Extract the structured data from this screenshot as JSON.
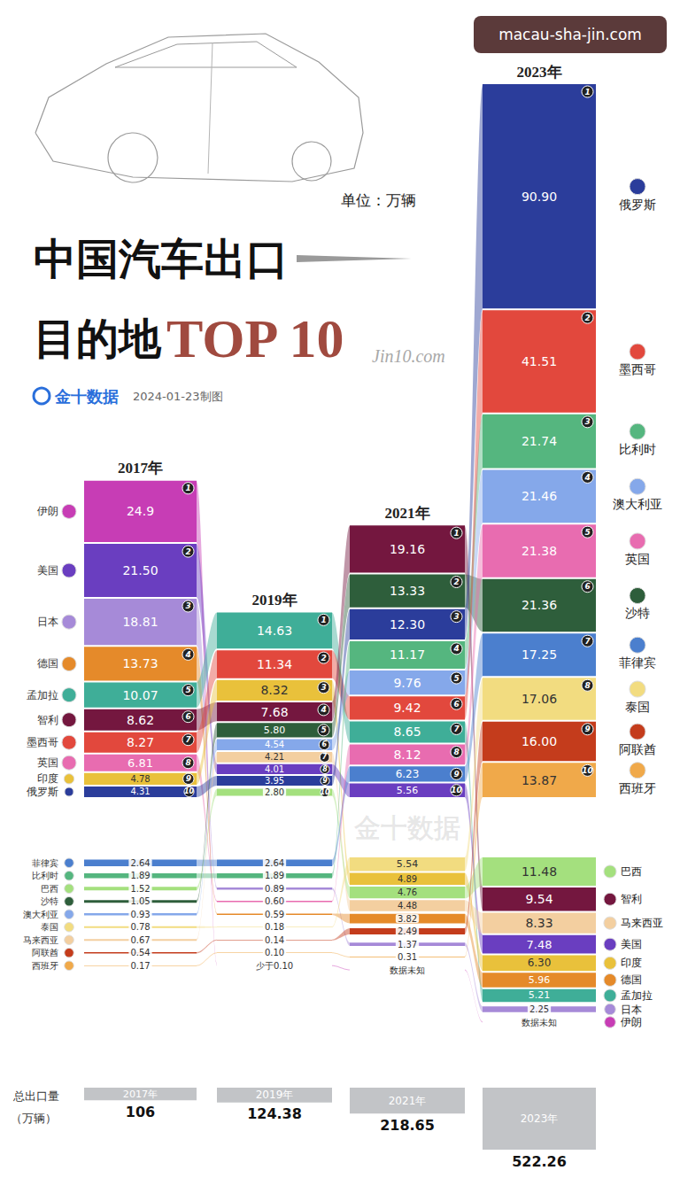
{
  "watermark_top": "macau-sha-jin.com",
  "header": {
    "title_line1": "中国汽车出口",
    "title_line2": "目的地",
    "title_highlight": "TOP 10",
    "unit": "单位：万辆",
    "source": "金十数据",
    "date": "2024-01-23制图",
    "signature": "Jin10.com"
  },
  "totals": {
    "label": "总出口量",
    "unit": "（万辆）"
  },
  "chart_data": {
    "type": "bar",
    "data_labels": true,
    "years": [
      {
        "label": "2017年",
        "total": 106,
        "ranks": [
          1,
          2,
          3,
          4,
          5,
          6,
          7,
          8,
          9,
          10
        ],
        "countries": [
          "伊朗",
          "美国",
          "日本",
          "德国",
          "孟加拉",
          "智利",
          "墨西哥",
          "英国",
          "印度",
          "俄罗斯",
          "菲律宾",
          "比利时",
          "巴西",
          "沙特",
          "澳大利亚",
          "泰国",
          "马来西亚",
          "阿联酋",
          "西班牙"
        ],
        "values": [
          24.9,
          21.5,
          18.81,
          13.73,
          10.07,
          8.62,
          8.27,
          6.81,
          4.78,
          4.31,
          2.64,
          1.89,
          1.52,
          1.05,
          0.93,
          0.78,
          0.67,
          0.54,
          0.17
        ],
        "value_labels": [
          "24.9",
          "21.50",
          "18.81",
          "13.73",
          "10.07",
          "8.62",
          "8.27",
          "6.81",
          "4.78",
          "4.31",
          "2.64",
          "1.89",
          "1.52",
          "1.05",
          "0.93",
          "0.78",
          "0.67",
          "0.54",
          "0.17"
        ],
        "colors": [
          "#c73db5",
          "#6a3ec0",
          "#a68ad8",
          "#e58a2a",
          "#3fae98",
          "#74173f",
          "#e2483d",
          "#e86cb0",
          "#e9c13b",
          "#2b3d9b",
          "#4b7fce",
          "#55b67f",
          "#a4e07e",
          "#2e5e3b",
          "#85a8ea",
          "#f2dc80",
          "#f3cfa0",
          "#c43c1c",
          "#f0a94a"
        ]
      },
      {
        "label": "2019年",
        "total": 124.38,
        "ranks": [
          1,
          2,
          3,
          4,
          5,
          6,
          7,
          8,
          9,
          10
        ],
        "values": [
          14.63,
          11.34,
          8.32,
          7.68,
          5.8,
          4.54,
          4.21,
          4.01,
          3.95,
          2.8,
          2.64,
          1.89,
          0.89,
          0.6,
          0.59,
          0.18,
          0.14,
          0.1,
          null
        ],
        "value_labels": [
          "14.63",
          "11.34",
          "8.32",
          "7.68",
          "5.80",
          "4.54",
          "4.21",
          "4.01",
          "3.95",
          "2.80",
          "2.64",
          "1.89",
          "0.89",
          "0.60",
          "0.59",
          "0.18",
          "0.14",
          "0.10",
          "少于0.10"
        ],
        "colors": [
          "#3fae98",
          "#e2483d",
          "#e9c13b",
          "#74173f",
          "#2e5e3b",
          "#85a8ea",
          "#f3cfa0",
          "#6a3ec0",
          "#2b3d9b",
          "#a4e07e",
          "#4b7fce",
          "#55b67f",
          "#a68ad8",
          "#e86cb0",
          "#e58a2a",
          "#f2dc80",
          "#c43c1c",
          "#f0a94a",
          "#c73db5"
        ]
      },
      {
        "label": "2021年",
        "total": 218.65,
        "ranks": [
          1,
          2,
          3,
          4,
          5,
          6,
          7,
          8,
          9,
          10
        ],
        "values": [
          19.16,
          13.33,
          12.3,
          11.17,
          9.76,
          9.42,
          8.65,
          8.12,
          6.23,
          5.56,
          5.54,
          4.89,
          4.76,
          4.48,
          3.82,
          2.49,
          1.37,
          0.31,
          null
        ],
        "value_labels": [
          "19.16",
          "13.33",
          "12.30",
          "11.17",
          "9.76",
          "9.42",
          "8.65",
          "8.12",
          "6.23",
          "5.56",
          "5.54",
          "4.89",
          "4.76",
          "4.48",
          "3.82",
          "2.49",
          "1.37",
          "0.31",
          "数据未知"
        ],
        "colors": [
          "#74173f",
          "#2e5e3b",
          "#2b3d9b",
          "#55b67f",
          "#85a8ea",
          "#e2483d",
          "#3fae98",
          "#e86cb0",
          "#4b7fce",
          "#6a3ec0",
          "#f2dc80",
          "#e9c13b",
          "#a4e07e",
          "#f3cfa0",
          "#e58a2a",
          "#c43c1c",
          "#a68ad8",
          "#f0a94a",
          "#c73db5"
        ]
      },
      {
        "label": "2023年",
        "total": 522.26,
        "ranks": [
          1,
          2,
          3,
          4,
          5,
          6,
          7,
          8,
          9,
          10
        ],
        "countries": [
          "俄罗斯",
          "墨西哥",
          "比利时",
          "澳大利亚",
          "英国",
          "沙特",
          "菲律宾",
          "泰国",
          "阿联酋",
          "西班牙",
          "巴西",
          "智利",
          "马来西亚",
          "美国",
          "印度",
          "德国",
          "孟加拉",
          "日本",
          "伊朗"
        ],
        "values": [
          90.9,
          41.51,
          21.74,
          21.46,
          21.38,
          21.36,
          17.25,
          17.06,
          16,
          13.87,
          11.48,
          9.54,
          8.33,
          7.48,
          6.3,
          5.96,
          5.21,
          2.25,
          null
        ],
        "value_labels": [
          "90.90",
          "41.51",
          "21.74",
          "21.46",
          "21.38",
          "21.36",
          "17.25",
          "17.06",
          "16.00",
          "13.87",
          "11.48",
          "9.54",
          "8.33",
          "7.48",
          "6.30",
          "5.96",
          "5.21",
          "2.25",
          "数据未知"
        ],
        "colors": [
          "#2b3d9b",
          "#e2483d",
          "#55b67f",
          "#85a8ea",
          "#e86cb0",
          "#2e5e3b",
          "#4b7fce",
          "#f2dc80",
          "#c43c1c",
          "#f0a94a",
          "#a4e07e",
          "#74173f",
          "#f3cfa0",
          "#6a3ec0",
          "#e9c13b",
          "#e58a2a",
          "#3fae98",
          "#a68ad8",
          "#c73db5"
        ]
      }
    ]
  }
}
